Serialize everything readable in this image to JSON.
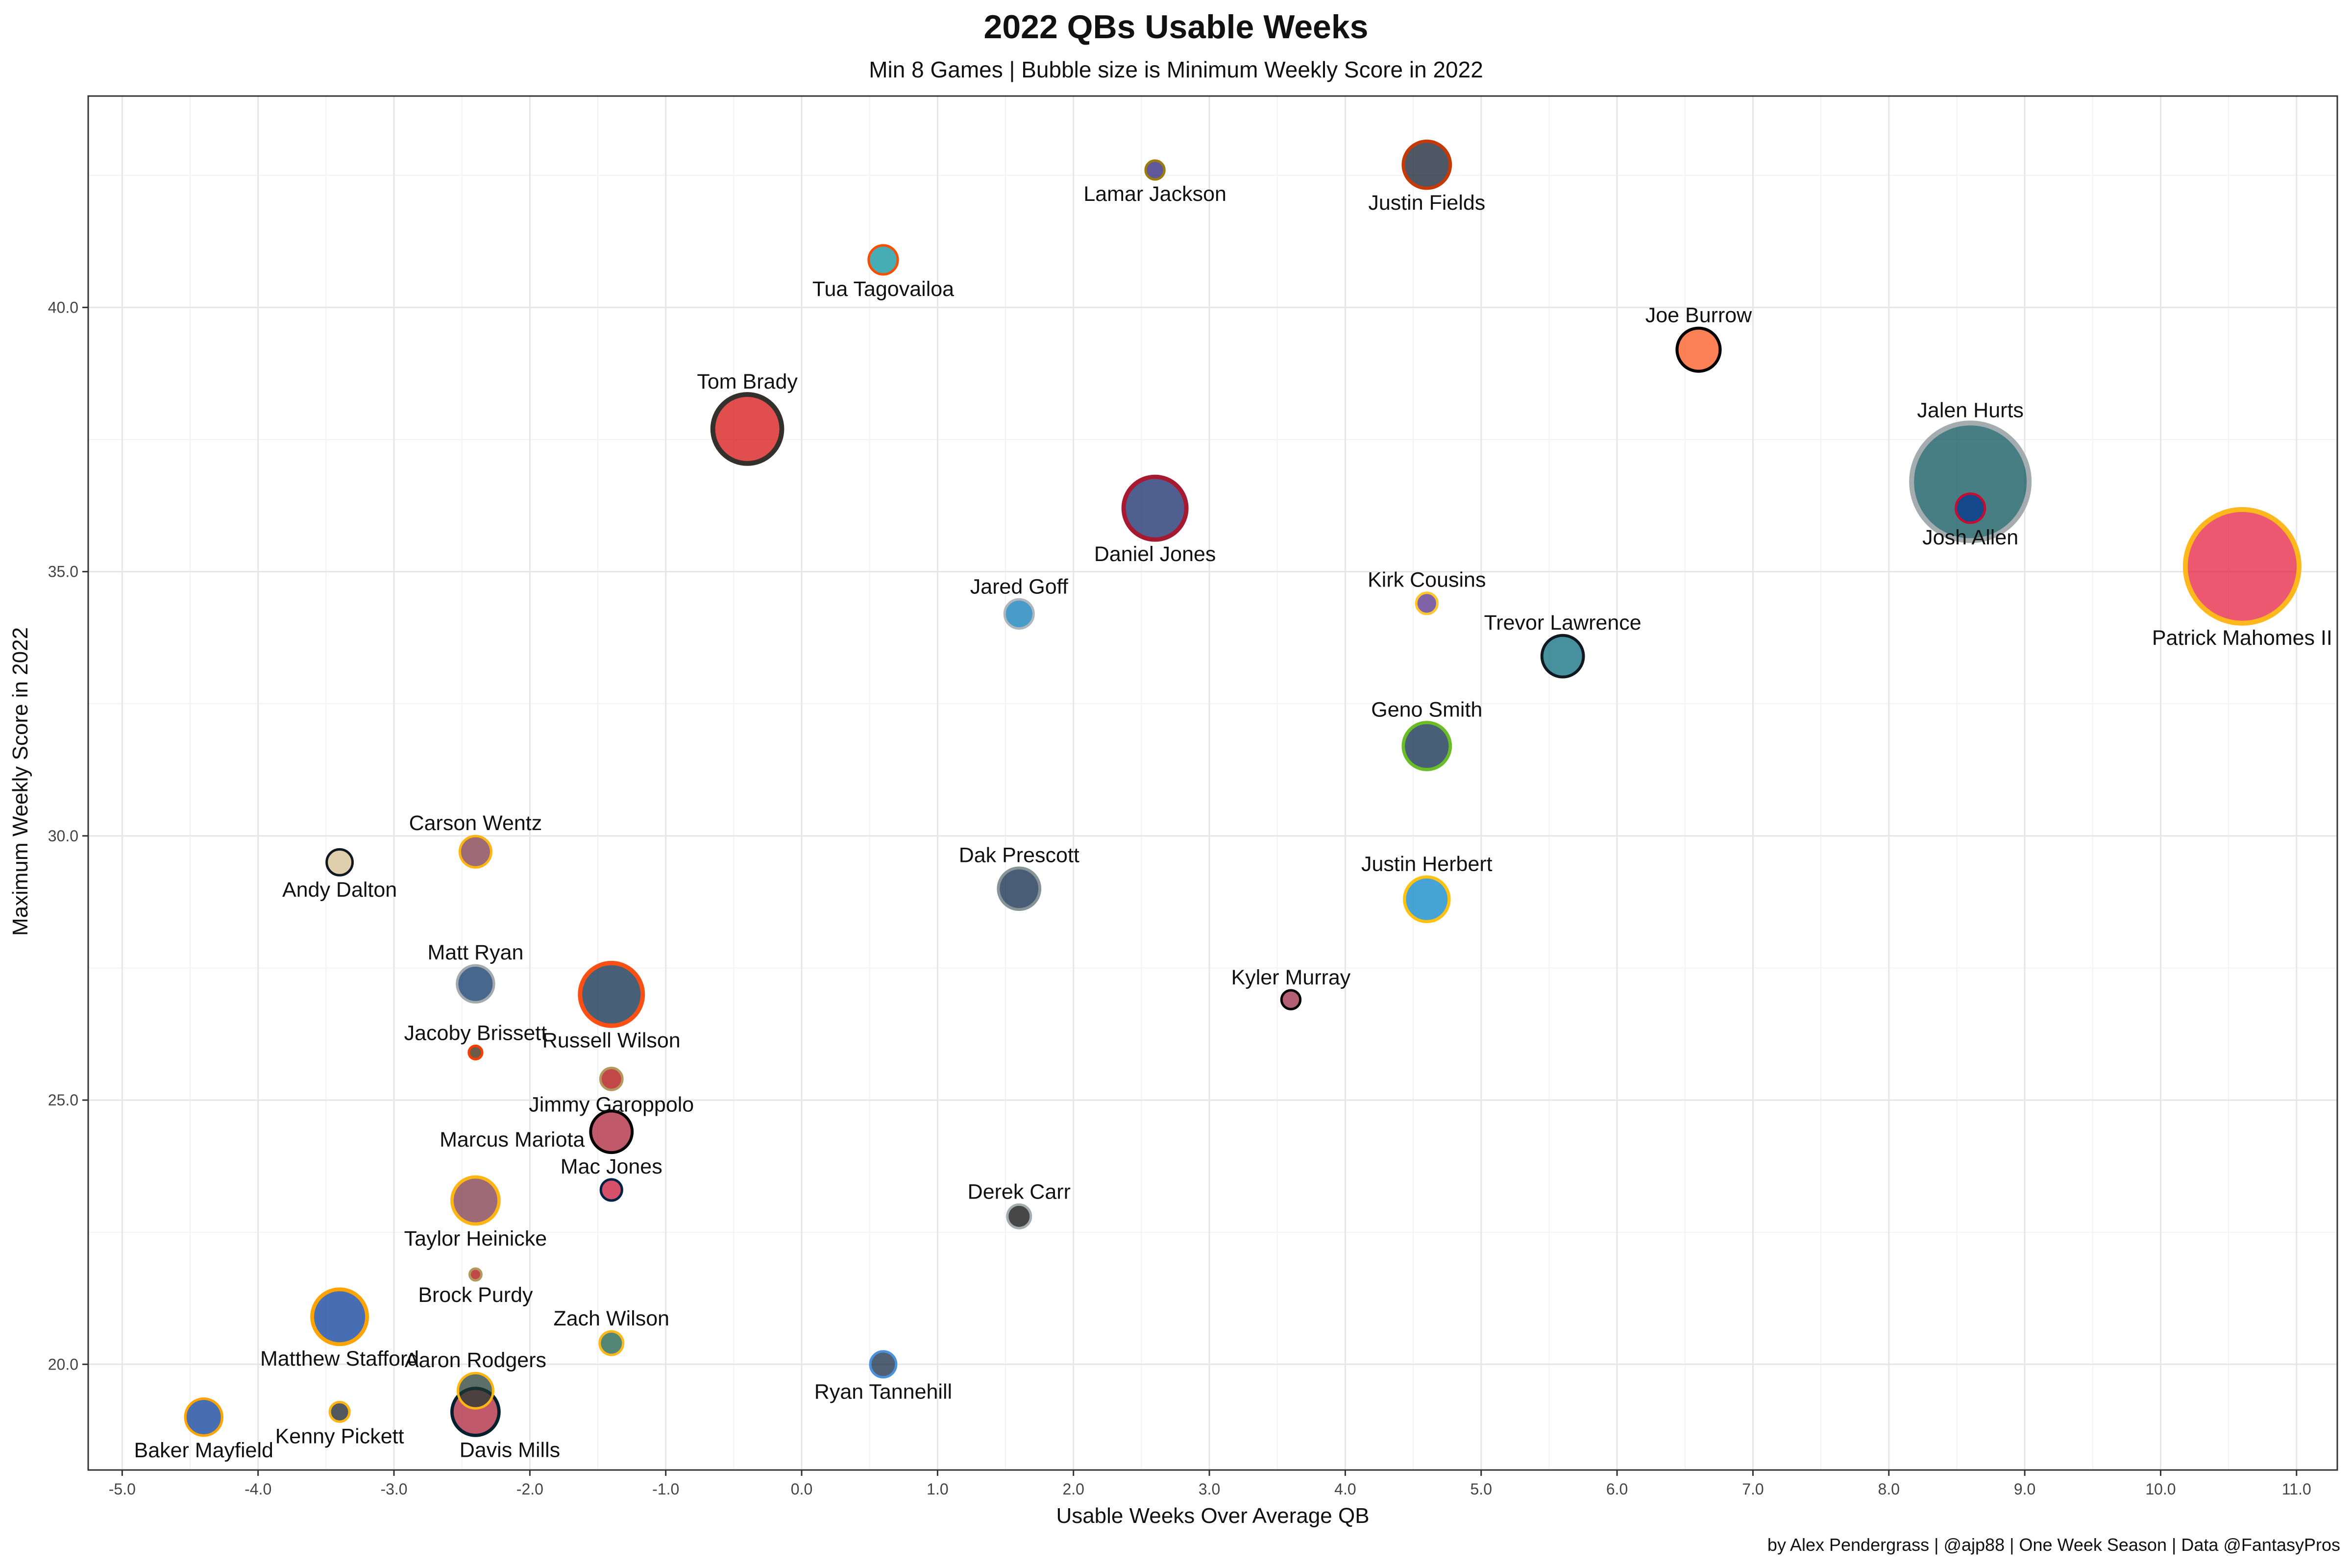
{
  "chart_data": {
    "type": "scatter",
    "title": "2022 QBs Usable Weeks",
    "subtitle": "Min 8 Games | Bubble size is Minimum Weekly Score in 2022",
    "xlabel": "Usable Weeks Over Average QB",
    "ylabel": "Maximum Weekly Score in 2022",
    "caption": "by Alex Pendergrass | @ajp88 | One Week Season | Data @FantasyPros",
    "xlim": [
      -5.25,
      11.3
    ],
    "ylim": [
      18.0,
      44.0
    ],
    "grid": true,
    "legend": "none",
    "x_ticks": [
      {
        "value": -5,
        "label": "-5.0"
      },
      {
        "value": -4,
        "label": "-4.0"
      },
      {
        "value": -3,
        "label": "-3.0"
      },
      {
        "value": -2,
        "label": "-2.0"
      },
      {
        "value": -1,
        "label": "-1.0"
      },
      {
        "value": 0,
        "label": "0.0"
      },
      {
        "value": 1,
        "label": "1.0"
      },
      {
        "value": 2,
        "label": "2.0"
      },
      {
        "value": 3,
        "label": "3.0"
      },
      {
        "value": 4,
        "label": "4.0"
      },
      {
        "value": 5,
        "label": "5.0"
      },
      {
        "value": 6,
        "label": "6.0"
      },
      {
        "value": 7,
        "label": "7.0"
      },
      {
        "value": 8,
        "label": "8.0"
      },
      {
        "value": 9,
        "label": "9.0"
      },
      {
        "value": 10,
        "label": "10.0"
      },
      {
        "value": 11,
        "label": "11.0"
      }
    ],
    "y_ticks": [
      {
        "value": 20,
        "label": "20.0"
      },
      {
        "value": 25,
        "label": "25.0"
      },
      {
        "value": 30,
        "label": "30.0"
      },
      {
        "value": 35,
        "label": "35.0"
      },
      {
        "value": 40,
        "label": "40.0"
      }
    ],
    "points": [
      {
        "name": "Patrick Mahomes II",
        "x": 10.6,
        "y": 35.1,
        "size": 14.0,
        "fill": "#E31837",
        "stroke": "#FFB81C",
        "label_pos": "below"
      },
      {
        "name": "Jalen Hurts",
        "x": 8.6,
        "y": 36.7,
        "size": 14.5,
        "fill": "#004C54",
        "stroke": "#A5ACAF",
        "label_pos": "above"
      },
      {
        "name": "Josh Allen",
        "x": 8.6,
        "y": 36.2,
        "size": 3.2,
        "fill": "#00338D",
        "stroke": "#C60C30",
        "label_pos": "below"
      },
      {
        "name": "Joe Burrow",
        "x": 6.6,
        "y": 39.2,
        "size": 5.0,
        "fill": "#FB4F14",
        "stroke": "#000000",
        "label_pos": "above"
      },
      {
        "name": "Trevor Lawrence",
        "x": 5.6,
        "y": 33.4,
        "size": 4.8,
        "fill": "#006778",
        "stroke": "#101820",
        "label_pos": "above"
      },
      {
        "name": "Justin Fields",
        "x": 4.6,
        "y": 42.7,
        "size": 5.5,
        "fill": "#0B162A",
        "stroke": "#C83803",
        "label_pos": "below"
      },
      {
        "name": "Kirk Cousins",
        "x": 4.6,
        "y": 34.4,
        "size": 2.2,
        "fill": "#4F2683",
        "stroke": "#FFC62F",
        "label_pos": "above"
      },
      {
        "name": "Geno Smith",
        "x": 4.6,
        "y": 31.7,
        "size": 5.5,
        "fill": "#002244",
        "stroke": "#69BE28",
        "label_pos": "above"
      },
      {
        "name": "Justin Herbert",
        "x": 4.6,
        "y": 28.8,
        "size": 5.2,
        "fill": "#0080C6",
        "stroke": "#FFC20E",
        "label_pos": "above"
      },
      {
        "name": "Kyler Murray",
        "x": 3.6,
        "y": 26.9,
        "size": 1.9,
        "fill": "#97233F",
        "stroke": "#000000",
        "label_pos": "above"
      },
      {
        "name": "Lamar Jackson",
        "x": 2.6,
        "y": 42.6,
        "size": 1.9,
        "fill": "#241773",
        "stroke": "#9E7C0C",
        "label_pos": "below"
      },
      {
        "name": "Daniel Jones",
        "x": 2.6,
        "y": 36.2,
        "size": 7.5,
        "fill": "#0B2265",
        "stroke": "#A71930",
        "label_pos": "below"
      },
      {
        "name": "Jared Goff",
        "x": 1.6,
        "y": 34.2,
        "size": 3.2,
        "fill": "#0076B6",
        "stroke": "#B0B7BC",
        "label_pos": "above"
      },
      {
        "name": "Dak Prescott",
        "x": 1.6,
        "y": 29.0,
        "size": 4.8,
        "fill": "#041E42",
        "stroke": "#869397",
        "label_pos": "above"
      },
      {
        "name": "Derek Carr",
        "x": 1.6,
        "y": 22.8,
        "size": 2.5,
        "fill": "#000000",
        "stroke": "#A5ACAF",
        "label_pos": "above"
      },
      {
        "name": "Tua Tagovailoa",
        "x": 0.6,
        "y": 40.9,
        "size": 3.2,
        "fill": "#008E97",
        "stroke": "#FC4C02",
        "label_pos": "below"
      },
      {
        "name": "Ryan Tannehill",
        "x": 0.6,
        "y": 20.0,
        "size": 2.8,
        "fill": "#0C2340",
        "stroke": "#4B92DB",
        "label_pos": "below"
      },
      {
        "name": "Tom Brady",
        "x": -0.4,
        "y": 37.7,
        "size": 8.3,
        "fill": "#D50A0A",
        "stroke": "#34302B",
        "label_pos": "above"
      },
      {
        "name": "Russell Wilson",
        "x": -1.4,
        "y": 27.0,
        "size": 7.5,
        "fill": "#002244",
        "stroke": "#FB4F14",
        "label_pos": "below"
      },
      {
        "name": "Jimmy Garoppolo",
        "x": -1.4,
        "y": 25.4,
        "size": 2.3,
        "fill": "#AA0000",
        "stroke": "#B3995D",
        "label_pos": "below"
      },
      {
        "name": "Marcus Mariota",
        "x": -1.4,
        "y": 24.4,
        "size": 4.8,
        "fill": "#A71930",
        "stroke": "#000000",
        "label_pos": "left"
      },
      {
        "name": "Mac Jones",
        "x": -1.4,
        "y": 23.3,
        "size": 2.2,
        "fill": "#C60C30",
        "stroke": "#002244",
        "label_pos": "above"
      },
      {
        "name": "Zach Wilson",
        "x": -1.4,
        "y": 20.4,
        "size": 2.5,
        "fill": "#125740",
        "stroke": "#FFB81C",
        "label_pos": "above"
      },
      {
        "name": "Carson Wentz",
        "x": -2.4,
        "y": 29.7,
        "size": 3.5,
        "fill": "#773141",
        "stroke": "#FFB612",
        "label_pos": "above"
      },
      {
        "name": "Matt Ryan",
        "x": -2.4,
        "y": 27.2,
        "size": 4.2,
        "fill": "#002C5F",
        "stroke": "#A2AAAD",
        "label_pos": "above"
      },
      {
        "name": "Jacoby Brissett",
        "x": -2.4,
        "y": 25.9,
        "size": 1.2,
        "fill": "#311D00",
        "stroke": "#FF3C00",
        "label_pos": "above"
      },
      {
        "name": "Taylor Heinicke",
        "x": -2.4,
        "y": 23.1,
        "size": 5.5,
        "fill": "#773141",
        "stroke": "#FFB612",
        "label_pos": "below"
      },
      {
        "name": "Brock Purdy",
        "x": -2.4,
        "y": 21.7,
        "size": 1.0,
        "fill": "#AA0000",
        "stroke": "#B3995D",
        "label_pos": "below"
      },
      {
        "name": "Aaron Rodgers",
        "x": -2.4,
        "y": 19.5,
        "size": 4.0,
        "fill": "#203731",
        "stroke": "#FFB612",
        "label_pos": "above"
      },
      {
        "name": "Davis Mills",
        "x": -2.4,
        "y": 19.1,
        "size": 5.5,
        "fill": "#A71930",
        "stroke": "#03202F",
        "label_pos": "below-right"
      },
      {
        "name": "Andy Dalton",
        "x": -3.4,
        "y": 29.5,
        "size": 2.8,
        "fill": "#D3BC8D",
        "stroke": "#101820",
        "label_pos": "below"
      },
      {
        "name": "Matthew Stafford",
        "x": -3.4,
        "y": 20.9,
        "size": 6.5,
        "fill": "#003594",
        "stroke": "#FFA300",
        "label_pos": "below"
      },
      {
        "name": "Kenny Pickett",
        "x": -3.4,
        "y": 19.1,
        "size": 2.0,
        "fill": "#101820",
        "stroke": "#FFB612",
        "label_pos": "below"
      },
      {
        "name": "Baker Mayfield",
        "x": -4.4,
        "y": 19.0,
        "size": 4.2,
        "fill": "#003594",
        "stroke": "#FFA300",
        "label_pos": "below"
      }
    ]
  }
}
